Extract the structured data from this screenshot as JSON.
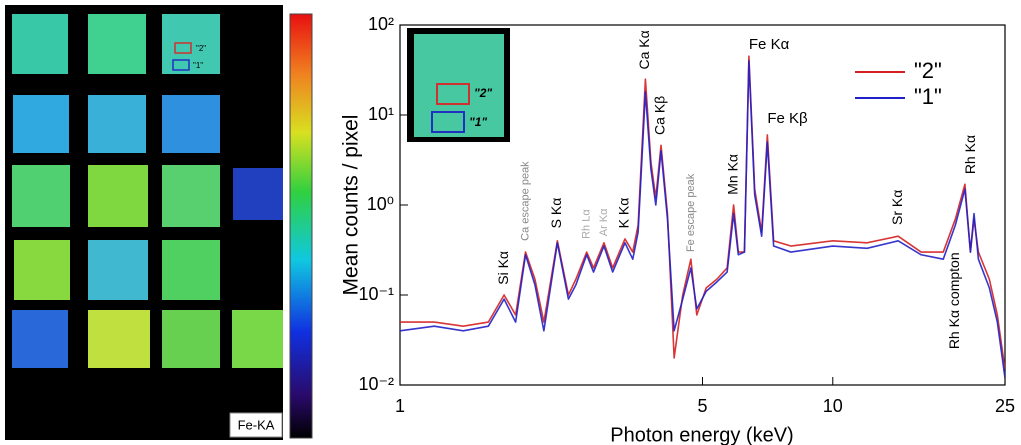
{
  "chart_data": {
    "type": "line",
    "xlabel": "Photon energy (keV)",
    "ylabel": "Mean counts / pixel",
    "xscale": "log",
    "yscale": "log",
    "xlim": [
      1,
      25
    ],
    "xticks": [
      1,
      5,
      10,
      25
    ],
    "ylim": [
      0.01,
      100
    ],
    "yticks": [
      {
        "value": 0.01,
        "label": "10⁻²"
      },
      {
        "value": 0.1,
        "label": "10⁻¹"
      },
      {
        "value": 1,
        "label": "10⁰"
      },
      {
        "value": 10,
        "label": "10¹"
      },
      {
        "value": 100,
        "label": "10²"
      }
    ],
    "legend": "upper right",
    "x": [
      1.0,
      1.2,
      1.4,
      1.6,
      1.74,
      1.85,
      1.95,
      2.05,
      2.15,
      2.31,
      2.45,
      2.55,
      2.7,
      2.8,
      2.96,
      3.1,
      3.31,
      3.45,
      3.55,
      3.69,
      3.8,
      3.9,
      4.01,
      4.15,
      4.3,
      4.5,
      4.7,
      4.85,
      5.1,
      5.4,
      5.7,
      5.9,
      6.05,
      6.25,
      6.4,
      6.6,
      6.85,
      7.06,
      7.3,
      8,
      10,
      12,
      14.16,
      16,
      18,
      19.2,
      20.2,
      20.8,
      21.2,
      21.7,
      23,
      24,
      25
    ],
    "series": [
      {
        "name": "\"2\"",
        "color": "#d42020",
        "values": [
          0.05,
          0.05,
          0.045,
          0.05,
          0.1,
          0.06,
          0.3,
          0.15,
          0.05,
          0.4,
          0.1,
          0.15,
          0.3,
          0.2,
          0.38,
          0.2,
          0.42,
          0.3,
          0.6,
          25,
          3,
          1.2,
          4.6,
          0.8,
          0.02,
          0.1,
          0.25,
          0.06,
          0.12,
          0.15,
          0.2,
          1,
          0.3,
          0.3,
          45,
          1.5,
          0.5,
          6,
          0.4,
          0.35,
          0.4,
          0.38,
          0.45,
          0.3,
          0.3,
          0.7,
          1.7,
          0.3,
          0.7,
          0.3,
          0.15,
          0.06,
          0.015
        ]
      },
      {
        "name": "\"1\"",
        "color": "#2020c8",
        "values": [
          0.04,
          0.045,
          0.04,
          0.045,
          0.09,
          0.05,
          0.28,
          0.13,
          0.04,
          0.38,
          0.09,
          0.13,
          0.28,
          0.18,
          0.35,
          0.18,
          0.38,
          0.25,
          0.5,
          18,
          2.5,
          1,
          4,
          0.7,
          0.04,
          0.09,
          0.2,
          0.07,
          0.11,
          0.14,
          0.18,
          0.8,
          0.28,
          0.3,
          40,
          1.3,
          0.45,
          5,
          0.35,
          0.3,
          0.35,
          0.33,
          0.4,
          0.28,
          0.25,
          0.6,
          1.5,
          0.3,
          0.8,
          0.25,
          0.12,
          0.05,
          0.012
        ]
      }
    ],
    "annotations": [
      {
        "text": "Si Kα",
        "x": 1.74,
        "y": 0.13,
        "color": "#000000",
        "vertical": true
      },
      {
        "text": "Ca escape peak",
        "x": 1.95,
        "y": 0.4,
        "color": "#888888",
        "vertical": true
      },
      {
        "text": "S Kα",
        "x": 2.31,
        "y": 0.55,
        "color": "#000000",
        "vertical": true
      },
      {
        "text": "Rh Lα",
        "x": 2.7,
        "y": 0.42,
        "color": "#aaaaaa",
        "vertical": true
      },
      {
        "text": "Ar Kα",
        "x": 2.96,
        "y": 0.45,
        "color": "#aaaaaa",
        "vertical": true
      },
      {
        "text": "K Kα",
        "x": 3.31,
        "y": 0.55,
        "color": "#000000",
        "vertical": true
      },
      {
        "text": "Ca Kα",
        "x": 3.69,
        "y": 32,
        "color": "#000000",
        "vertical": true
      },
      {
        "text": "Ca Kβ",
        "x": 4.01,
        "y": 6,
        "color": "#000000",
        "vertical": true
      },
      {
        "text": "Fe escape peak",
        "x": 4.7,
        "y": 0.3,
        "color": "#888888",
        "vertical": true
      },
      {
        "text": "Mn Kα",
        "x": 5.9,
        "y": 1.3,
        "color": "#000000",
        "vertical": true
      },
      {
        "text": "Fe Kα",
        "x": 6.4,
        "y": 60,
        "color": "#000000",
        "vertical": false
      },
      {
        "text": "Fe Kβ",
        "x": 7.06,
        "y": 9,
        "color": "#000000",
        "vertical": false
      },
      {
        "text": "Sr Kα",
        "x": 14.16,
        "y": 0.6,
        "color": "#000000",
        "vertical": true
      },
      {
        "text": "Rh Kα compton",
        "x": 19.2,
        "y": 0.025,
        "color": "#000000",
        "vertical": true
      },
      {
        "text": "Rh Kα",
        "x": 20.9,
        "y": 2.2,
        "color": "#000000",
        "vertical": true
      }
    ]
  },
  "map": {
    "label": "Fe-KA",
    "region_labels": [
      "\"2\"",
      "\"1\""
    ]
  },
  "inset": {
    "region_labels": [
      "\"2\"",
      "\"1\""
    ]
  }
}
